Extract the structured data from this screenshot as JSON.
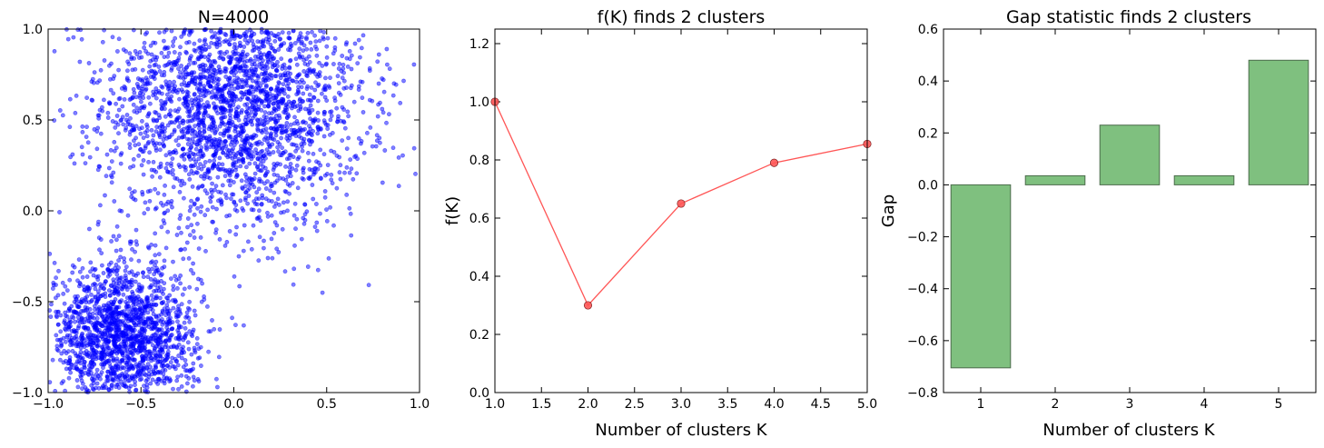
{
  "colors": {
    "scatter": "#0000ff",
    "line": "#ff5555",
    "bar_fill": "#7fc07f",
    "bar_edge": "#4c6b4c"
  },
  "chart_data": [
    {
      "type": "scatter",
      "title": "N=4000",
      "xlabel": "",
      "ylabel": "",
      "xlim": [
        -1.0,
        1.0
      ],
      "ylim": [
        -1.0,
        1.0
      ],
      "xticks": [
        "−1.0",
        "−0.5",
        "0.0",
        "0.5",
        "1.0"
      ],
      "yticks": [
        "−1.0",
        "−0.5",
        "0.0",
        "0.5",
        "1.0"
      ],
      "grid": false,
      "n_points": 4000,
      "clusters": [
        {
          "center": [
            0.0,
            0.6
          ],
          "spread": 0.35,
          "fraction": 0.6
        },
        {
          "center": [
            -0.6,
            -0.7
          ],
          "spread": 0.2,
          "fraction": 0.4
        }
      ]
    },
    {
      "type": "line",
      "title": "f(K) finds 2 clusters",
      "xlabel": "Number of clusters K",
      "ylabel": "f(K)",
      "xlim": [
        1.0,
        5.0
      ],
      "ylim": [
        0.0,
        1.25
      ],
      "xticks": [
        "1.0",
        "1.5",
        "2.0",
        "2.5",
        "3.0",
        "3.5",
        "4.0",
        "4.5",
        "5.0"
      ],
      "yticks": [
        "0.0",
        "0.2",
        "0.4",
        "0.6",
        "0.8",
        "1.0",
        "1.2"
      ],
      "x": [
        1,
        2,
        3,
        4,
        5
      ],
      "y": [
        1.0,
        0.3,
        0.65,
        0.79,
        0.855
      ],
      "grid": false
    },
    {
      "type": "bar",
      "title": "Gap statistic finds 2 clusters",
      "xlabel": "Number of clusters K",
      "ylabel": "Gap",
      "categories": [
        "1",
        "2",
        "3",
        "4",
        "5"
      ],
      "values": [
        -0.705,
        0.035,
        0.23,
        0.035,
        0.48
      ],
      "ylim": [
        -0.8,
        0.6
      ],
      "yticks": [
        "−0.8",
        "−0.6",
        "−0.4",
        "−0.2",
        "0.0",
        "0.2",
        "0.4",
        "0.6"
      ],
      "grid": false
    }
  ]
}
